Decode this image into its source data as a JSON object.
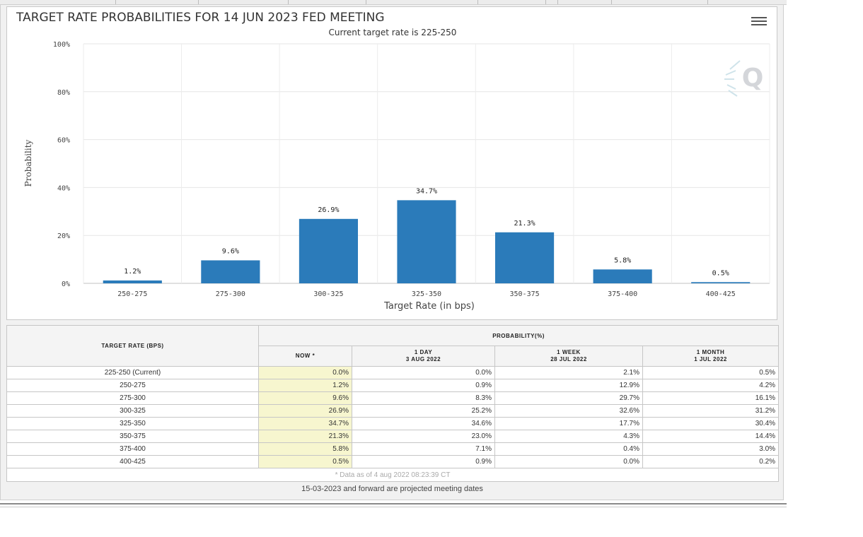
{
  "chart_data": {
    "type": "bar",
    "title": "TARGET RATE PROBABILITIES FOR 14 JUN 2023 FED MEETING",
    "subtitle": "Current target rate is 225-250",
    "xlabel": "Target Rate (in bps)",
    "ylabel": "Probability",
    "categories": [
      "250-275",
      "275-300",
      "300-325",
      "325-350",
      "350-375",
      "375-400",
      "400-425"
    ],
    "values": [
      1.2,
      9.6,
      26.9,
      34.7,
      21.3,
      5.8,
      0.5
    ],
    "data_labels": [
      "1.2%",
      "9.6%",
      "26.9%",
      "34.7%",
      "21.3%",
      "5.8%",
      "0.5%"
    ],
    "yticks": [
      "0%",
      "20%",
      "40%",
      "60%",
      "80%",
      "100%"
    ],
    "ylim": [
      0,
      100
    ],
    "bar_color": "#2b7bba",
    "grid": true,
    "legend": "none"
  },
  "menu_icon": "hamburger-menu-icon",
  "logo_icon": "cme-q-logo-icon",
  "table": {
    "rate_header": "TARGET RATE (BPS)",
    "prob_header": "PROBABILITY(%)",
    "columns": [
      {
        "line1": "NOW *",
        "line2": ""
      },
      {
        "line1": "1 DAY",
        "line2": "3 AUG 2022"
      },
      {
        "line1": "1 WEEK",
        "line2": "28 JUL 2022"
      },
      {
        "line1": "1 MONTH",
        "line2": "1 JUL 2022"
      }
    ],
    "rows": [
      {
        "rate": "225-250 (Current)",
        "now": "0.0%",
        "day": "0.0%",
        "week": "2.1%",
        "month": "0.5%"
      },
      {
        "rate": "250-275",
        "now": "1.2%",
        "day": "0.9%",
        "week": "12.9%",
        "month": "4.2%"
      },
      {
        "rate": "275-300",
        "now": "9.6%",
        "day": "8.3%",
        "week": "29.7%",
        "month": "16.1%"
      },
      {
        "rate": "300-325",
        "now": "26.9%",
        "day": "25.2%",
        "week": "32.6%",
        "month": "31.2%"
      },
      {
        "rate": "325-350",
        "now": "34.7%",
        "day": "34.6%",
        "week": "17.7%",
        "month": "30.4%"
      },
      {
        "rate": "350-375",
        "now": "21.3%",
        "day": "23.0%",
        "week": "4.3%",
        "month": "14.4%"
      },
      {
        "rate": "375-400",
        "now": "5.8%",
        "day": "7.1%",
        "week": "0.4%",
        "month": "3.0%"
      },
      {
        "rate": "400-425",
        "now": "0.5%",
        "day": "0.9%",
        "week": "0.0%",
        "month": "0.2%"
      }
    ],
    "data_note": "* Data as of 4 aug 2022 08:23:39 CT"
  },
  "footer_note": "15-03-2023 and forward are projected meeting dates"
}
